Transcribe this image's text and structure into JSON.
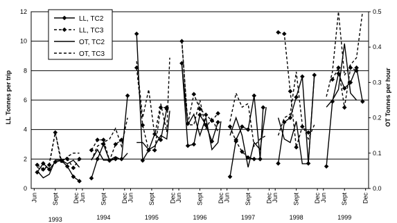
{
  "chart_data": {
    "type": "line",
    "title": "",
    "ylabel_left": "LL Tonnes per trip",
    "ylabel_right": "OT Tonnes per hour",
    "ylim_left": [
      0,
      12
    ],
    "ylim_right": [
      0,
      0.5
    ],
    "yticks_left": [
      "0",
      "2",
      "4",
      "6",
      "8",
      "10",
      "12"
    ],
    "yticks_right": [
      "0.0",
      "0.1",
      "0.2",
      "0.3",
      "0.4",
      "0.5"
    ],
    "month_tick_labels": [
      "Jun",
      "Sept",
      "Dec"
    ],
    "years": [
      "1993",
      "1994",
      "1995",
      "1996",
      "1997",
      "1998",
      "1999"
    ],
    "grid": "horizontal",
    "legend_position": "top-left",
    "series": [
      {
        "name": "LL, TC2",
        "axis": "left",
        "style": "solid",
        "marker": "diamond",
        "segments": [
          [
            [
              1.0,
              1.1
            ],
            [
              2.0,
              1.7
            ],
            [
              3.0,
              1.3
            ],
            [
              4.0,
              1.8
            ],
            [
              5.0,
              1.9
            ],
            [
              6.0,
              1.5
            ],
            [
              7.0,
              0.8
            ],
            [
              8.0,
              0.5
            ]
          ],
          [
            [
              10.0,
              0.7
            ],
            [
              11.0,
              2.0
            ],
            [
              12.0,
              3.0
            ],
            [
              13.0,
              1.9
            ],
            [
              14.0,
              2.0
            ],
            [
              15.0,
              2.0
            ],
            [
              16.0,
              6.3
            ]
          ],
          [
            [
              17.5,
              10.5
            ],
            [
              18.5,
              1.9
            ],
            [
              19.5,
              2.6
            ],
            [
              20.5,
              3.7
            ],
            [
              21.5,
              3.3
            ],
            [
              22.5,
              5.4
            ]
          ],
          [
            [
              25.0,
              8.5
            ],
            [
              26.0,
              2.9
            ],
            [
              27.0,
              3.0
            ],
            [
              28.0,
              5.0
            ],
            [
              29.0,
              4.3
            ],
            [
              30.0,
              3.2
            ],
            [
              31.0,
              4.5
            ]
          ],
          [
            [
              33.0,
              0.8
            ],
            [
              34.0,
              3.3
            ],
            [
              35.0,
              4.2
            ],
            [
              36.0,
              4.0
            ],
            [
              37.0,
              6.3
            ],
            [
              38.0,
              2.0
            ],
            [
              38.5,
              5.5
            ]
          ],
          [
            [
              41.0,
              1.7
            ],
            [
              42.0,
              4.5
            ],
            [
              43.0,
              4.8
            ],
            [
              44.0,
              6.2
            ],
            [
              45.0,
              7.6
            ],
            [
              46.0,
              1.7
            ],
            [
              47.0,
              7.7
            ]
          ],
          [
            [
              49.0,
              1.5
            ],
            [
              50.0,
              5.9
            ],
            [
              51.0,
              7.8
            ],
            [
              52.0,
              6.8
            ],
            [
              53.0,
              7.2
            ],
            [
              54.0,
              8.2
            ],
            [
              55.0,
              5.9
            ]
          ]
        ]
      },
      {
        "name": "LL, TC3",
        "axis": "left",
        "style": "dashed",
        "marker": "diamond",
        "segments": [
          [
            [
              1.0,
              1.6
            ],
            [
              2.0,
              1.3
            ],
            [
              3.0,
              1.6
            ],
            [
              4.0,
              3.8
            ],
            [
              5.0,
              1.9
            ],
            [
              6.0,
              2.0
            ],
            [
              7.0,
              1.4
            ],
            [
              8.0,
              2.0
            ]
          ],
          [
            [
              10.0,
              2.6
            ],
            [
              11.0,
              3.3
            ],
            [
              12.0,
              3.3
            ],
            [
              13.0,
              1.9
            ],
            [
              14.0,
              3.0
            ],
            [
              15.0,
              3.3
            ]
          ],
          [
            [
              17.5,
              8.2
            ],
            [
              18.5,
              4.3
            ],
            [
              19.5,
              2.6
            ],
            [
              20.5,
              2.6
            ],
            [
              21.5,
              5.5
            ],
            [
              22.5,
              5.5
            ]
          ],
          [
            [
              25.0,
              10.0
            ],
            [
              26.0,
              4.4
            ],
            [
              27.0,
              6.4
            ],
            [
              28.0,
              5.4
            ],
            [
              29.0,
              5.0
            ],
            [
              30.0,
              4.6
            ],
            [
              31.0,
              5.1
            ]
          ],
          [
            [
              33.0,
              4.2
            ],
            [
              34.0,
              3.2
            ],
            [
              35.0,
              2.5
            ],
            [
              36.0,
              2.1
            ],
            [
              37.0,
              2.0
            ],
            [
              38.0,
              2.0
            ]
          ],
          [
            [
              41.0,
              10.6
            ],
            [
              42.0,
              10.5
            ],
            [
              43.0,
              6.6
            ],
            [
              44.0,
              2.8
            ],
            [
              45.0,
              4.2
            ],
            [
              46.0,
              3.8
            ]
          ],
          [
            [
              50.0,
              7.4
            ],
            [
              51.0,
              8.2
            ],
            [
              52.0,
              5.5
            ],
            [
              53.0,
              8.2
            ],
            [
              54.0,
              8.0
            ]
          ]
        ]
      },
      {
        "name": "OT, TC2",
        "axis": "right",
        "style": "solid",
        "marker": "none",
        "segments": [
          [
            [
              1.0,
              0.05
            ],
            [
              2.0,
              0.03
            ],
            [
              3.0,
              0.04
            ],
            [
              4.0,
              0.08
            ],
            [
              5.0,
              0.08
            ],
            [
              6.0,
              0.07
            ],
            [
              7.0,
              0.08
            ],
            [
              8.0,
              0.06
            ]
          ],
          [
            [
              10.0,
              0.08
            ],
            [
              11.0,
              0.11
            ],
            [
              12.0,
              0.08
            ],
            [
              13.0,
              0.08
            ],
            [
              14.0,
              0.09
            ],
            [
              15.0,
              0.08
            ],
            [
              16.0,
              0.1
            ]
          ],
          [
            [
              17.5,
              0.13
            ],
            [
              18.5,
              0.13
            ],
            [
              19.5,
              0.11
            ],
            [
              20.5,
              0.12
            ],
            [
              21.5,
              0.15
            ],
            [
              22.5,
              0.14
            ],
            [
              23.0,
              0.22
            ]
          ],
          [
            [
              25.0,
              0.35
            ],
            [
              26.0,
              0.18
            ],
            [
              27.0,
              0.21
            ],
            [
              28.0,
              0.15
            ],
            [
              29.0,
              0.2
            ],
            [
              30.0,
              0.11
            ],
            [
              31.0,
              0.13
            ],
            [
              31.5,
              0.19
            ]
          ],
          [
            [
              33.0,
              0.15
            ],
            [
              34.0,
              0.2
            ],
            [
              35.0,
              0.15
            ],
            [
              36.0,
              0.06
            ],
            [
              37.0,
              0.13
            ],
            [
              38.0,
              0.11
            ],
            [
              39.0,
              0.23
            ]
          ],
          [
            [
              41.0,
              0.2
            ],
            [
              42.0,
              0.14
            ],
            [
              43.0,
              0.13
            ],
            [
              44.0,
              0.19
            ],
            [
              45.0,
              0.07
            ],
            [
              46.0,
              0.07
            ],
            [
              47.0,
              0.32
            ]
          ],
          [
            [
              49.0,
              0.23
            ],
            [
              50.0,
              0.25
            ],
            [
              51.0,
              0.28
            ],
            [
              52.0,
              0.41
            ],
            [
              53.0,
              0.27
            ],
            [
              54.0,
              0.25
            ]
          ]
        ]
      },
      {
        "name": "OT, TC3",
        "axis": "right",
        "style": "dashed",
        "marker": "none",
        "segments": [
          [
            [
              1.0,
              0.06
            ],
            [
              2.0,
              0.05
            ],
            [
              3.0,
              0.07
            ],
            [
              4.0,
              0.16
            ],
            [
              5.0,
              0.07
            ],
            [
              6.0,
              0.09
            ],
            [
              7.0,
              0.1
            ],
            [
              8.0,
              0.1
            ]
          ],
          [
            [
              10.0,
              0.08
            ],
            [
              11.0,
              0.12
            ],
            [
              12.0,
              0.13
            ],
            [
              13.0,
              0.14
            ],
            [
              14.0,
              0.17
            ],
            [
              15.0,
              0.12
            ],
            [
              16.0,
              0.2
            ]
          ],
          [
            [
              17.5,
              0.36
            ],
            [
              18.5,
              0.2
            ],
            [
              19.5,
              0.28
            ],
            [
              20.5,
              0.15
            ],
            [
              21.5,
              0.24
            ],
            [
              22.5,
              0.16
            ],
            [
              23.0,
              0.37
            ]
          ],
          [
            [
              25.0,
              0.42
            ],
            [
              26.0,
              0.18
            ],
            [
              27.0,
              0.18
            ],
            [
              28.0,
              0.25
            ],
            [
              29.0,
              0.17
            ],
            [
              30.0,
              0.2
            ],
            [
              31.0,
              0.16
            ]
          ],
          [
            [
              33.0,
              0.19
            ],
            [
              34.0,
              0.27
            ],
            [
              35.0,
              0.23
            ],
            [
              36.0,
              0.24
            ],
            [
              37.0,
              0.12
            ],
            [
              38.0,
              0.14
            ],
            [
              39.0,
              0.15
            ]
          ],
          [
            [
              41.0,
              0.15
            ],
            [
              42.0,
              0.2
            ],
            [
              43.0,
              0.21
            ],
            [
              44.0,
              0.33
            ],
            [
              45.0,
              0.18
            ],
            [
              46.0,
              0.14
            ],
            [
              47.0,
              0.18
            ]
          ],
          [
            [
              49.0,
              0.26
            ],
            [
              50.0,
              0.33
            ],
            [
              51.0,
              0.5
            ],
            [
              52.0,
              0.32
            ],
            [
              53.0,
              0.35
            ],
            [
              54.0,
              0.37
            ],
            [
              55.0,
              0.5
            ]
          ]
        ]
      }
    ]
  }
}
